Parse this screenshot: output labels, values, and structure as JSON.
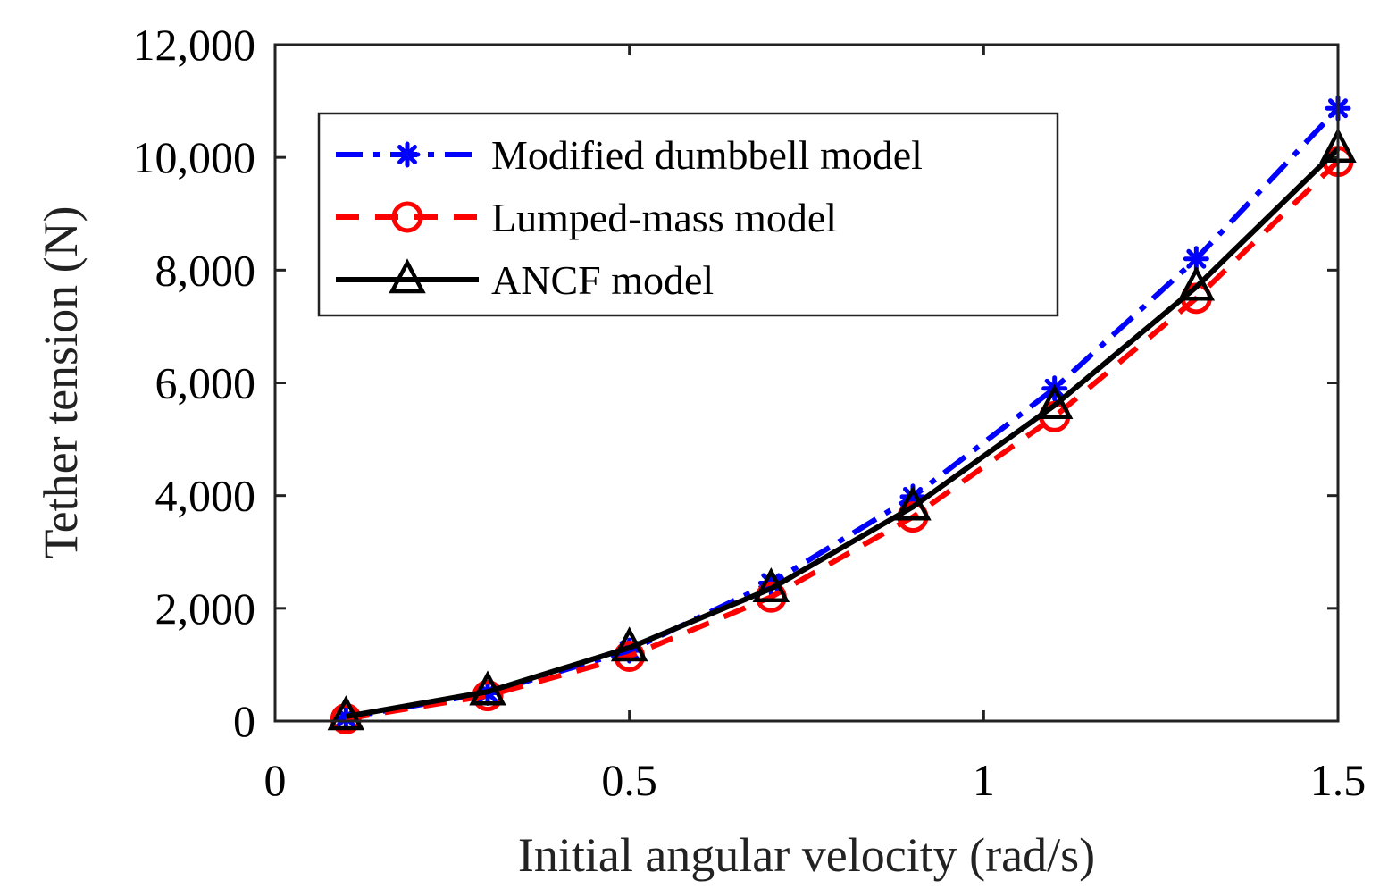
{
  "chart_data": {
    "type": "line",
    "title": "",
    "xlabel": "Initial angular velocity (rad/s)",
    "ylabel": "Tether tension (N)",
    "xlim": [
      0,
      1.5
    ],
    "ylim": [
      0,
      12000
    ],
    "xticks": [
      0,
      0.5,
      1,
      1.5
    ],
    "xtick_labels": [
      "0",
      "0.5",
      "1",
      "1.5"
    ],
    "yticks": [
      0,
      2000,
      4000,
      6000,
      8000,
      10000,
      12000
    ],
    "ytick_labels": [
      "0",
      "2,000",
      "4,000",
      "6,000",
      "8,000",
      "10,000",
      "12,000"
    ],
    "grid": false,
    "legend_position": "top-left",
    "x": [
      0.1,
      0.3,
      0.5,
      0.7,
      0.9,
      1.1,
      1.3,
      1.5
    ],
    "series": [
      {
        "name": "Modified dumbbell model",
        "color": "#0000ff",
        "line_style": "dash-dot",
        "marker": "asterisk",
        "values": [
          60,
          500,
          1250,
          2450,
          3980,
          5900,
          8200,
          10870
        ]
      },
      {
        "name": "Lumped-mass model",
        "color": "#ff0000",
        "line_style": "dashed",
        "marker": "circle",
        "values": [
          40,
          450,
          1150,
          2200,
          3620,
          5400,
          7500,
          9930
        ]
      },
      {
        "name": "ANCF model",
        "color": "#000000",
        "line_style": "solid",
        "marker": "triangle",
        "values": [
          80,
          520,
          1300,
          2350,
          3800,
          5600,
          7700,
          10150
        ]
      }
    ]
  }
}
